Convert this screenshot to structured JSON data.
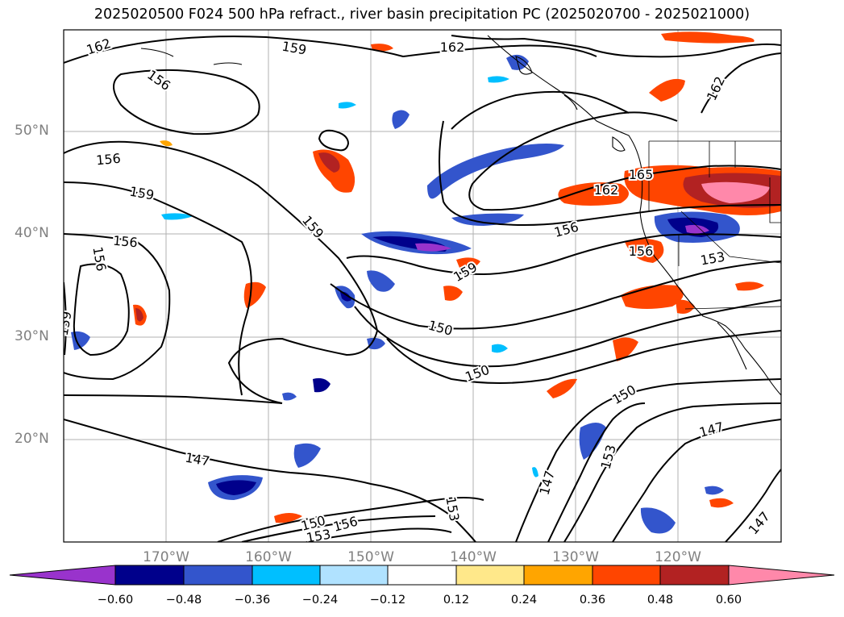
{
  "title": "2025020500 F024 500 hPa refract., river basin precipitation PC (2025020700 - 2025021000)",
  "lat_labels": [
    "50°N",
    "40°N",
    "30°N",
    "20°N"
  ],
  "lon_labels": [
    "170°W",
    "160°W",
    "150°W",
    "140°W",
    "130°W",
    "120°W"
  ],
  "colorbar": {
    "ticks": [
      "−0.60",
      "−0.48",
      "−0.36",
      "−0.24",
      "−0.12",
      "0.12",
      "0.24",
      "0.36",
      "0.48",
      "0.60"
    ],
    "colors": [
      "#9933cc",
      "#00008b",
      "#3355cc",
      "#00bfff",
      "#b0e2ff",
      "#ffffff",
      "#ffe88a",
      "#ffa500",
      "#ff4500",
      "#b22222",
      "#ff88aa"
    ]
  },
  "contour_labels": [
    "162",
    "159",
    "162",
    "156",
    "162",
    "156",
    "159",
    "156",
    "156",
    "159",
    "159",
    "165",
    "162",
    "156",
    "159",
    "156",
    "153",
    "150",
    "150",
    "150",
    "147",
    "147",
    "153",
    "147",
    "153",
    "147",
    "150",
    "153",
    "156"
  ]
}
